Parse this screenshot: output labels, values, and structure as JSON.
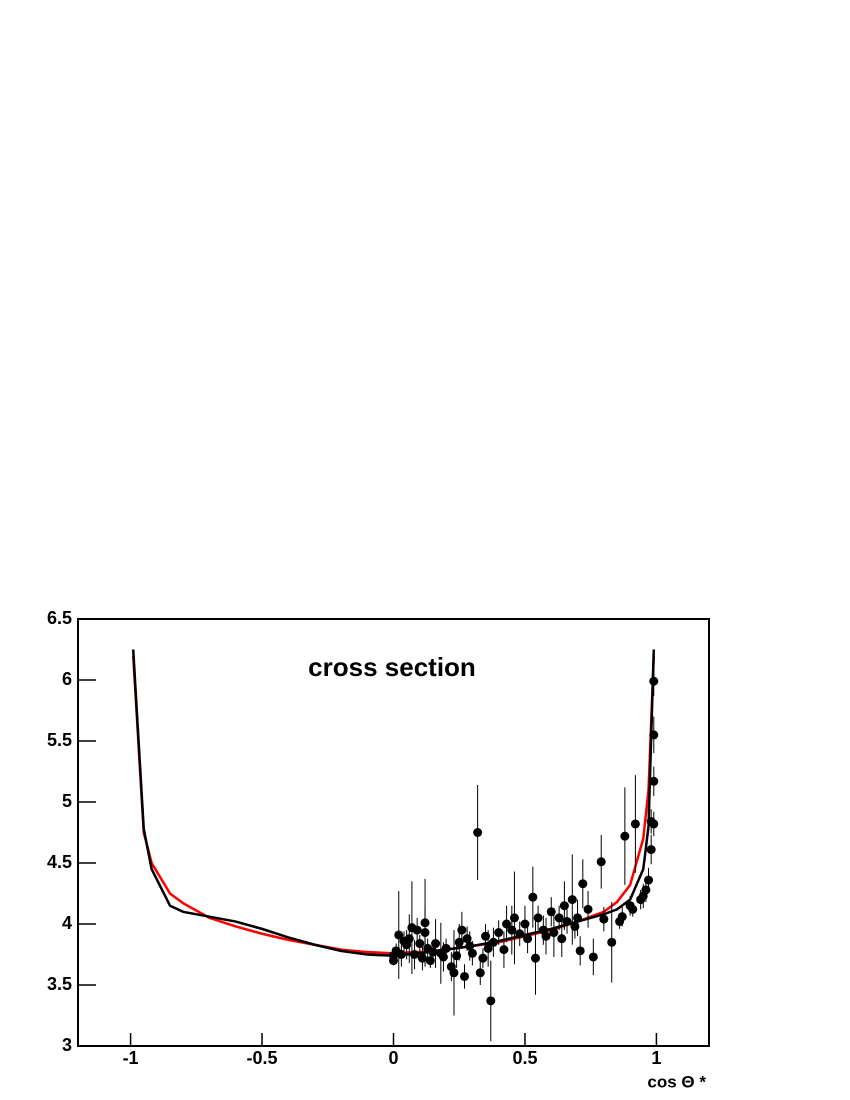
{
  "chart_data": {
    "type": "scatter",
    "title": "cross section",
    "xlabel": "cos Θ *",
    "xlim": [
      -1.2,
      1.2
    ],
    "ylim": [
      3,
      6.5
    ],
    "xticks": [
      -1,
      -0.5,
      0,
      0.5,
      1
    ],
    "yticks": [
      3,
      3.5,
      4,
      4.5,
      5,
      5.5,
      6,
      6.5
    ],
    "points": {
      "color": "#000000",
      "x": [
        0.0,
        0.0,
        0.01,
        0.02,
        0.03,
        0.04,
        0.05,
        0.06,
        0.07,
        0.08,
        0.09,
        0.1,
        0.11,
        0.12,
        0.12,
        0.13,
        0.14,
        0.15,
        0.16,
        0.18,
        0.19,
        0.2,
        0.22,
        0.23,
        0.24,
        0.25,
        0.26,
        0.27,
        0.28,
        0.29,
        0.3,
        0.32,
        0.33,
        0.34,
        0.35,
        0.36,
        0.37,
        0.38,
        0.4,
        0.42,
        0.43,
        0.45,
        0.46,
        0.48,
        0.5,
        0.51,
        0.53,
        0.54,
        0.55,
        0.57,
        0.58,
        0.6,
        0.61,
        0.63,
        0.64,
        0.65,
        0.66,
        0.68,
        0.69,
        0.7,
        0.71,
        0.72,
        0.74,
        0.76,
        0.79,
        0.8,
        0.83,
        0.86,
        0.87,
        0.88,
        0.9,
        0.91,
        0.92,
        0.94,
        0.95,
        0.96,
        0.97,
        0.98,
        0.98,
        0.99,
        0.99,
        0.99,
        0.99
      ],
      "values": [
        3.74,
        3.7,
        3.78,
        3.91,
        3.75,
        3.86,
        3.83,
        3.88,
        3.97,
        3.75,
        3.95,
        3.84,
        3.72,
        4.01,
        3.93,
        3.8,
        3.7,
        3.77,
        3.84,
        3.76,
        3.73,
        3.8,
        3.65,
        3.6,
        3.74,
        3.85,
        3.95,
        3.57,
        3.88,
        3.82,
        3.76,
        4.75,
        3.6,
        3.72,
        3.9,
        3.8,
        3.37,
        3.85,
        3.93,
        3.79,
        4.0,
        3.95,
        4.05,
        3.92,
        4.0,
        3.88,
        4.22,
        3.72,
        4.05,
        3.95,
        3.9,
        4.1,
        3.93,
        4.05,
        3.88,
        4.15,
        4.02,
        4.2,
        3.98,
        4.05,
        3.78,
        4.33,
        4.12,
        3.73,
        4.51,
        4.04,
        3.85,
        4.02,
        4.06,
        4.72,
        4.15,
        4.12,
        4.82,
        4.2,
        4.23,
        4.28,
        4.36,
        4.61,
        4.84,
        4.82,
        5.17,
        5.55,
        5.99
      ],
      "errors": [
        0.05,
        0.04,
        0.06,
        0.36,
        0.1,
        0.08,
        0.12,
        0.2,
        0.38,
        0.12,
        0.1,
        0.07,
        0.1,
        0.36,
        0.2,
        0.08,
        0.06,
        0.1,
        0.2,
        0.25,
        0.12,
        0.08,
        0.12,
        0.35,
        0.1,
        0.15,
        0.15,
        0.1,
        0.1,
        0.12,
        0.1,
        0.39,
        0.1,
        0.08,
        0.1,
        0.15,
        0.33,
        0.12,
        0.1,
        0.15,
        0.15,
        0.2,
        0.38,
        0.1,
        0.15,
        0.12,
        0.25,
        0.3,
        0.1,
        0.12,
        0.15,
        0.12,
        0.2,
        0.1,
        0.15,
        0.2,
        0.1,
        0.37,
        0.1,
        0.15,
        0.12,
        0.2,
        0.15,
        0.15,
        0.22,
        0.1,
        0.33,
        0.06,
        0.08,
        0.4,
        0.08,
        0.06,
        0.4,
        0.08,
        0.1,
        0.1,
        0.1,
        0.12,
        0.1,
        0.1,
        0.12,
        0.15,
        0.12
      ]
    },
    "lines": [
      {
        "color": "#ff0000",
        "x": [
          -0.99,
          -0.95,
          -0.92,
          -0.85,
          -0.8,
          -0.7,
          -0.6,
          -0.5,
          -0.4,
          -0.3,
          -0.2,
          -0.1,
          0,
          0.1,
          0.2,
          0.3,
          0.4,
          0.5,
          0.6,
          0.7,
          0.8,
          0.85,
          0.9,
          0.95,
          0.97,
          0.99
        ],
        "values": [
          6.2,
          4.75,
          4.5,
          4.25,
          4.17,
          4.05,
          3.98,
          3.92,
          3.87,
          3.83,
          3.79,
          3.77,
          3.76,
          3.77,
          3.79,
          3.82,
          3.85,
          3.9,
          3.95,
          4.02,
          4.1,
          4.18,
          4.32,
          4.7,
          5.1,
          6.2
        ]
      },
      {
        "color": "#000000",
        "x": [
          -0.99,
          -0.95,
          -0.92,
          -0.85,
          -0.8,
          -0.7,
          -0.6,
          -0.5,
          -0.4,
          -0.3,
          -0.2,
          -0.1,
          0,
          0.1,
          0.2,
          0.3,
          0.4,
          0.5,
          0.6,
          0.7,
          0.8,
          0.85,
          0.9,
          0.95,
          0.97,
          0.99
        ],
        "values": [
          6.25,
          4.78,
          4.45,
          4.15,
          4.1,
          4.06,
          4.02,
          3.96,
          3.89,
          3.83,
          3.78,
          3.75,
          3.74,
          3.76,
          3.79,
          3.82,
          3.86,
          3.91,
          3.96,
          4.02,
          4.08,
          4.12,
          4.2,
          4.45,
          4.8,
          6.25
        ]
      }
    ]
  }
}
